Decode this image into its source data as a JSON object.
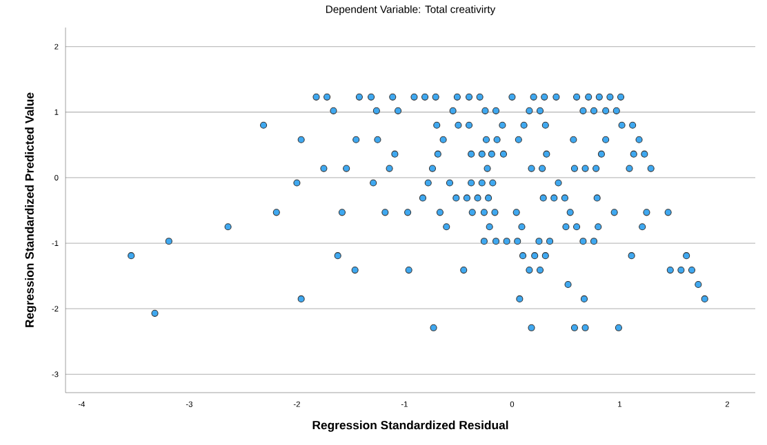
{
  "chart_data": {
    "type": "scatter",
    "title": "Dependent Variable: Total creativirty",
    "xlabel": "Regression Standardized Residual",
    "ylabel": "Regression Standardized Predicted Value",
    "xlim": [
      -4.15,
      2.26
    ],
    "ylim": [
      -3.28,
      2.29
    ],
    "xticks": [
      -4,
      -3,
      -2,
      -1,
      0,
      1,
      2
    ],
    "yticks": [
      -3,
      -2,
      -1,
      0,
      1,
      2
    ],
    "grid": "y",
    "marker": "circle",
    "series": [
      {
        "color": "#3fa8f0",
        "x": [
          -1.82,
          -1.72,
          -1.42,
          -1.31,
          -1.11,
          -0.91,
          -0.81,
          -0.71,
          -0.51,
          -0.4,
          -0.3,
          0.0,
          0.2,
          0.3,
          0.41,
          0.6,
          0.71,
          0.81,
          0.91,
          1.01,
          -1.66,
          -1.26,
          -1.06,
          -0.55,
          -0.25,
          -0.15,
          0.16,
          0.26,
          0.66,
          0.76,
          0.87,
          0.97,
          -2.31,
          -0.7,
          -0.5,
          -0.4,
          -0.09,
          0.11,
          0.31,
          1.02,
          1.12,
          -1.96,
          -1.45,
          -1.25,
          -0.64,
          -0.24,
          -0.14,
          0.06,
          0.57,
          0.87,
          1.18,
          -1.09,
          -0.69,
          -0.38,
          -0.28,
          -0.19,
          -0.08,
          0.32,
          0.83,
          1.13,
          1.23,
          -1.75,
          -1.54,
          -1.14,
          -0.74,
          -0.23,
          0.18,
          0.28,
          0.58,
          0.68,
          0.78,
          1.09,
          1.29,
          -2.0,
          -1.29,
          -0.78,
          -0.58,
          -0.38,
          -0.28,
          -0.18,
          0.43,
          -0.83,
          -0.52,
          -0.42,
          -0.32,
          -0.22,
          0.29,
          0.39,
          0.49,
          0.79,
          -2.19,
          -1.58,
          -1.18,
          -0.97,
          -0.67,
          -0.37,
          -0.26,
          -0.16,
          0.04,
          0.54,
          0.95,
          1.25,
          1.45,
          -2.64,
          -0.61,
          -0.21,
          0.09,
          0.5,
          0.6,
          0.8,
          1.21,
          -3.19,
          -0.26,
          -0.15,
          -0.05,
          0.05,
          0.25,
          0.35,
          0.66,
          0.76,
          -3.54,
          -1.62,
          0.1,
          0.21,
          0.31,
          1.11,
          1.62,
          -1.46,
          -0.96,
          -0.45,
          0.16,
          0.26,
          1.47,
          1.57,
          1.67,
          0.52,
          1.73,
          -1.96,
          0.07,
          0.67,
          1.79,
          -3.32,
          -0.73,
          0.18,
          0.58,
          0.68,
          0.99
        ],
        "values": [
          1.23,
          1.23,
          1.23,
          1.23,
          1.23,
          1.23,
          1.23,
          1.23,
          1.23,
          1.23,
          1.23,
          1.23,
          1.23,
          1.23,
          1.23,
          1.23,
          1.23,
          1.23,
          1.23,
          1.23,
          1.02,
          1.02,
          1.02,
          1.02,
          1.02,
          1.02,
          1.02,
          1.02,
          1.02,
          1.02,
          1.02,
          1.02,
          0.8,
          0.8,
          0.8,
          0.8,
          0.8,
          0.8,
          0.8,
          0.8,
          0.8,
          0.58,
          0.58,
          0.58,
          0.58,
          0.58,
          0.58,
          0.58,
          0.58,
          0.58,
          0.58,
          0.36,
          0.36,
          0.36,
          0.36,
          0.36,
          0.36,
          0.36,
          0.36,
          0.36,
          0.36,
          0.14,
          0.14,
          0.14,
          0.14,
          0.14,
          0.14,
          0.14,
          0.14,
          0.14,
          0.14,
          0.14,
          0.14,
          -0.08,
          -0.08,
          -0.08,
          -0.08,
          -0.08,
          -0.08,
          -0.08,
          -0.08,
          -0.31,
          -0.31,
          -0.31,
          -0.31,
          -0.31,
          -0.31,
          -0.31,
          -0.31,
          -0.31,
          -0.53,
          -0.53,
          -0.53,
          -0.53,
          -0.53,
          -0.53,
          -0.53,
          -0.53,
          -0.53,
          -0.53,
          -0.53,
          -0.53,
          -0.53,
          -0.75,
          -0.75,
          -0.75,
          -0.75,
          -0.75,
          -0.75,
          -0.75,
          -0.75,
          -0.97,
          -0.97,
          -0.97,
          -0.97,
          -0.97,
          -0.97,
          -0.97,
          -0.97,
          -0.97,
          -1.19,
          -1.19,
          -1.19,
          -1.19,
          -1.19,
          -1.19,
          -1.19,
          -1.41,
          -1.41,
          -1.41,
          -1.41,
          -1.41,
          -1.41,
          -1.41,
          -1.41,
          -1.63,
          -1.63,
          -1.85,
          -1.85,
          -1.85,
          -1.85,
          -2.07,
          -2.29,
          -2.29,
          -2.29,
          -2.29,
          -2.29
        ]
      }
    ]
  }
}
